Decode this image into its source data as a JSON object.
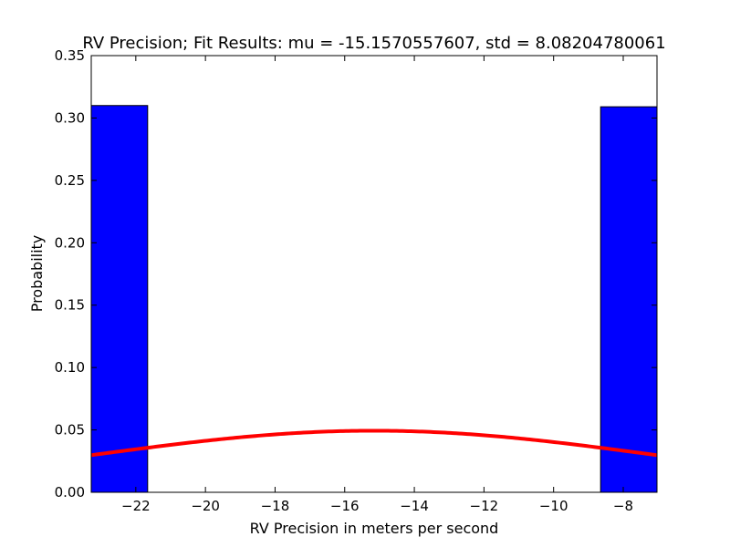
{
  "chart_data": {
    "type": "bar",
    "title": "RV Precision; Fit Results: mu = -15.1570557607, std = 8.08204780061",
    "xlabel": "RV Precision in meters per second",
    "ylabel": "Probability",
    "xlim": [
      -23.28,
      -7.03
    ],
    "ylim": [
      0,
      0.35
    ],
    "x_ticks": [
      -22,
      -20,
      -18,
      -16,
      -14,
      -12,
      -10,
      -8
    ],
    "x_tick_labels": [
      "−22",
      "−20",
      "−18",
      "−16",
      "−14",
      "−12",
      "−10",
      "−8"
    ],
    "y_ticks": [
      0.0,
      0.05,
      0.1,
      0.15,
      0.2,
      0.25,
      0.3,
      0.35
    ],
    "y_tick_labels": [
      "0.00",
      "0.05",
      "0.10",
      "0.15",
      "0.20",
      "0.25",
      "0.30",
      "0.35"
    ],
    "grid": false,
    "series": [
      {
        "type": "histogram",
        "color": "#0000ff",
        "edgecolor": "#000000",
        "bins": [
          {
            "x0": -23.28,
            "x1": -21.66,
            "value": 0.31
          },
          {
            "x0": -8.65,
            "x1": -7.03,
            "value": 0.309
          }
        ]
      },
      {
        "type": "line",
        "color": "#ff0000",
        "distribution": "normal",
        "mu": -15.1570557607,
        "std": 8.08204780061
      }
    ]
  }
}
